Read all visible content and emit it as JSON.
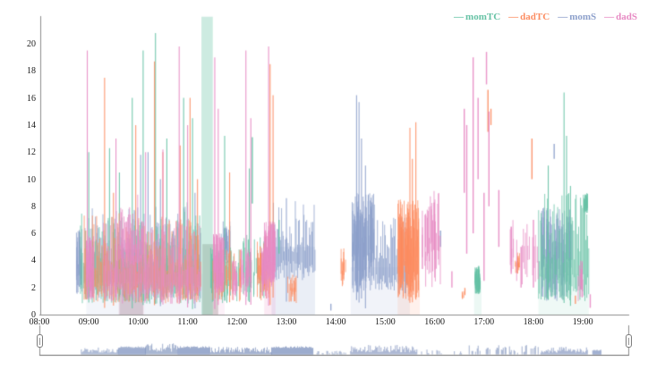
{
  "legend": {
    "items": [
      {
        "label": "momTC",
        "color": "#66C2A5"
      },
      {
        "label": "dadTC",
        "color": "#FC8D62"
      },
      {
        "label": "momS",
        "color": "#8DA0CB"
      },
      {
        "label": "dadS",
        "color": "#E78AC3"
      }
    ],
    "swatch_glyph": "—"
  },
  "chart_data": {
    "type": "line",
    "title": "",
    "xlabel": "",
    "ylabel": "",
    "x_axis": {
      "tick_labels": [
        "08:00",
        "09:00",
        "10:00",
        "11:00",
        "12:00",
        "13:00",
        "14:00",
        "15:00",
        "16:00",
        "17:00",
        "18:00",
        "19:00"
      ],
      "tick_hours": [
        8,
        9,
        10,
        11,
        12,
        13,
        14,
        15,
        16,
        17,
        18,
        19
      ],
      "domain_hours": [
        8,
        19.94
      ]
    },
    "y_axis": {
      "tick_labels": [
        "0",
        "2",
        "4",
        "6",
        "8",
        "10",
        "12",
        "14",
        "16",
        "18",
        "20"
      ],
      "tick_values": [
        0,
        2,
        4,
        6,
        8,
        10,
        12,
        14,
        16,
        18,
        20
      ],
      "domain": [
        0,
        22
      ]
    },
    "grid": false,
    "legend_position": "top-right",
    "highlight_band": {
      "t0": 11.28,
      "t1": 11.51,
      "v0": 0,
      "v1": 22,
      "color": "rgba(102,194,165,0.33)"
    },
    "background_bands": [
      {
        "t0": 9.62,
        "t1": 10.1,
        "v0": 0,
        "v1": 4.8,
        "color": "rgba(160,152,148,0.38)"
      },
      {
        "t0": 11.3,
        "t1": 11.62,
        "v0": 0,
        "v1": 5.2,
        "color": "rgba(160,152,148,0.42)"
      },
      {
        "t0": 8.95,
        "t1": 11.3,
        "v0": 0,
        "v1": 3.0,
        "color": "rgba(141,160,203,0.10)"
      },
      {
        "t0": 12.7,
        "t1": 13.58,
        "v0": 0,
        "v1": 5.0,
        "color": "rgba(141,160,203,0.18)"
      },
      {
        "t0": 14.3,
        "t1": 15.5,
        "v0": 0,
        "v1": 3.5,
        "color": "rgba(141,160,203,0.12)"
      },
      {
        "t0": 9.6,
        "t1": 10.12,
        "v0": 0,
        "v1": 3.5,
        "color": "rgba(231,138,195,0.15)"
      },
      {
        "t0": 12.55,
        "t1": 12.78,
        "v0": 0,
        "v1": 3.0,
        "color": "rgba(231,138,195,0.18)"
      },
      {
        "t0": 11.52,
        "t1": 11.75,
        "v0": 0,
        "v1": 3.0,
        "color": "rgba(231,138,195,0.12)"
      },
      {
        "t0": 15.25,
        "t1": 15.7,
        "v0": 0,
        "v1": 2.5,
        "color": "rgba(252,141,98,0.12)"
      },
      {
        "t0": 18.1,
        "t1": 19.12,
        "v0": 0,
        "v1": 3.0,
        "color": "rgba(102,194,165,0.10)"
      },
      {
        "t0": 16.8,
        "t1": 16.95,
        "v0": 0,
        "v1": 2.5,
        "color": "rgba(102,194,165,0.12)"
      }
    ],
    "cluster_fields": [
      "t_start",
      "t_end",
      "v_min",
      "v_max",
      "count"
    ],
    "spike_fields": [
      "t",
      "v_peak"
    ],
    "segment_fields": [
      "t",
      "v_low",
      "v_high"
    ],
    "series": [
      {
        "name": "momS",
        "color": "#8DA0CB",
        "clusters": [
          [
            8.75,
            8.87,
            1.5,
            6.5,
            22
          ],
          [
            8.9,
            11.27,
            1.2,
            8,
            420
          ],
          [
            11.68,
            11.86,
            3.5,
            7,
            30
          ],
          [
            12.7,
            13.58,
            2.5,
            8.5,
            400
          ],
          [
            14.33,
            14.78,
            1.5,
            9,
            90
          ],
          [
            14.8,
            15.48,
            1.5,
            7.5,
            200
          ],
          [
            18.15,
            18.78,
            1,
            8,
            90
          ]
        ],
        "spikes": [
          [
            10.05,
            11.8
          ],
          [
            10.2,
            12
          ],
          [
            10.45,
            10
          ],
          [
            11.15,
            9
          ],
          [
            13.0,
            8.6
          ],
          [
            14.42,
            16.2
          ],
          [
            14.47,
            15.7
          ],
          [
            14.52,
            13
          ],
          [
            14.6,
            11
          ]
        ],
        "segments": [
          [
            18.42,
            11.5,
            12.6
          ],
          [
            16.12,
            5,
            6.2
          ],
          [
            13.9,
            0.3,
            0.8
          ]
        ]
      },
      {
        "name": "momTC",
        "color": "#66C2A5",
        "clusters": [
          [
            8.83,
            11.27,
            0.8,
            7.5,
            420
          ],
          [
            11.45,
            12.05,
            0.8,
            5,
            40
          ],
          [
            12.1,
            12.55,
            1,
            6,
            28
          ],
          [
            16.82,
            16.92,
            1.5,
            3.6,
            50
          ],
          [
            18.1,
            19.12,
            1,
            9,
            150
          ],
          [
            19.02,
            19.1,
            7.5,
            9,
            30
          ]
        ],
        "spikes": [
          [
            9.0,
            12
          ],
          [
            9.42,
            12.3
          ],
          [
            9.62,
            10.5
          ],
          [
            9.88,
            16
          ],
          [
            10.1,
            19.5
          ],
          [
            10.35,
            20.8
          ],
          [
            10.58,
            13
          ],
          [
            10.92,
            16
          ],
          [
            11.1,
            14.5
          ],
          [
            11.75,
            13.2
          ],
          [
            12.25,
            10.8
          ],
          [
            18.3,
            11
          ],
          [
            18.62,
            16.4
          ],
          [
            18.67,
            13.2
          ],
          [
            18.75,
            9.5
          ]
        ],
        "segments": [
          [
            12.31,
            8.2,
            13.1
          ],
          [
            12.85,
            4.5,
            7
          ]
        ]
      },
      {
        "name": "dadTC",
        "color": "#FC8D62",
        "clusters": [
          [
            8.9,
            11.27,
            0.8,
            7.5,
            380
          ],
          [
            11.5,
            12.1,
            0.8,
            5,
            30
          ],
          [
            12.4,
            12.65,
            1,
            6,
            25
          ],
          [
            13.0,
            13.2,
            0.8,
            3,
            14
          ],
          [
            14.1,
            14.2,
            2,
            5,
            10
          ],
          [
            15.25,
            15.68,
            1,
            8.5,
            110
          ],
          [
            16.55,
            16.62,
            1,
            2.2,
            6
          ],
          [
            17.62,
            17.72,
            3,
            4.6,
            14
          ]
        ],
        "spikes": [
          [
            9.32,
            17.5
          ],
          [
            9.5,
            9
          ],
          [
            9.95,
            14
          ],
          [
            10.33,
            18.7
          ],
          [
            10.5,
            12
          ],
          [
            10.85,
            12.5
          ],
          [
            11.05,
            16
          ],
          [
            11.2,
            10
          ],
          [
            11.85,
            10.5
          ],
          [
            12.67,
            18.5
          ],
          [
            12.73,
            16.2
          ],
          [
            15.5,
            13.8
          ],
          [
            15.55,
            11.5
          ],
          [
            15.62,
            14.2
          ]
        ],
        "segments": [
          [
            17.08,
            13.5,
            16.6
          ],
          [
            17.14,
            14,
            15.2
          ],
          [
            17.97,
            10,
            13
          ],
          [
            18.85,
            0.8,
            1.4
          ]
        ]
      },
      {
        "name": "dadS",
        "color": "#E78AC3",
        "clusters": [
          [
            8.95,
            9.1,
            1,
            6,
            30
          ],
          [
            9.3,
            11.27,
            0.8,
            7,
            300
          ],
          [
            9.6,
            10.12,
            3.5,
            8,
            260
          ],
          [
            11.52,
            11.75,
            1.5,
            6,
            45
          ],
          [
            11.9,
            12.0,
            1,
            4,
            12
          ],
          [
            12.08,
            12.28,
            1,
            5,
            22
          ],
          [
            12.5,
            12.62,
            1,
            5,
            14
          ],
          [
            12.55,
            12.78,
            2,
            7,
            70
          ],
          [
            15.75,
            16.12,
            2,
            9.5,
            30
          ],
          [
            17.5,
            18.1,
            2,
            7,
            18
          ],
          [
            18.9,
            19.0,
            1,
            4,
            10
          ]
        ],
        "spikes": [
          [
            8.97,
            19.5
          ],
          [
            9.55,
            13
          ],
          [
            10.15,
            12
          ],
          [
            10.5,
            12.2
          ],
          [
            10.83,
            19.8
          ],
          [
            11.0,
            14
          ],
          [
            11.55,
            19
          ],
          [
            11.62,
            15.2
          ],
          [
            12.18,
            19.5
          ],
          [
            12.28,
            14.5
          ],
          [
            12.64,
            19.8
          ]
        ],
        "segments": [
          [
            16.6,
            9,
            15.2
          ],
          [
            16.65,
            4.5,
            14
          ],
          [
            16.78,
            6,
            19
          ],
          [
            16.88,
            10,
            16
          ],
          [
            17.0,
            2.5,
            9
          ],
          [
            17.05,
            17,
            19.4
          ],
          [
            17.1,
            8,
            15
          ],
          [
            17.3,
            5,
            9.2
          ],
          [
            17.55,
            3,
            6.5
          ],
          [
            17.75,
            2,
            5
          ],
          [
            18.0,
            2,
            7
          ],
          [
            16.35,
            2,
            3.2
          ],
          [
            19.15,
            0.5,
            1.5
          ]
        ]
      }
    ],
    "navigator": {
      "color": "#8DA0CB",
      "bump_fields": [
        "t_start",
        "t_end",
        "max_height_px",
        "style"
      ],
      "bumps": [
        [
          8.85,
          9.6,
          9,
          "noisy"
        ],
        [
          9.6,
          10.15,
          10,
          "plateau"
        ],
        [
          10.15,
          10.8,
          13,
          "noisy"
        ],
        [
          10.8,
          11.45,
          10,
          "plateau"
        ],
        [
          11.45,
          12.7,
          9,
          "noisy"
        ],
        [
          12.7,
          13.55,
          10,
          "plateau"
        ],
        [
          13.6,
          14.25,
          5,
          "sparse"
        ],
        [
          14.3,
          15.65,
          11,
          "noisy"
        ],
        [
          15.7,
          16.15,
          6,
          "sparse"
        ],
        [
          16.4,
          16.55,
          4,
          "sparse"
        ],
        [
          16.7,
          18.1,
          11,
          "sparse"
        ],
        [
          18.15,
          19.1,
          9,
          "noisy"
        ],
        [
          19.2,
          19.38,
          6,
          "plateau"
        ]
      ]
    }
  }
}
